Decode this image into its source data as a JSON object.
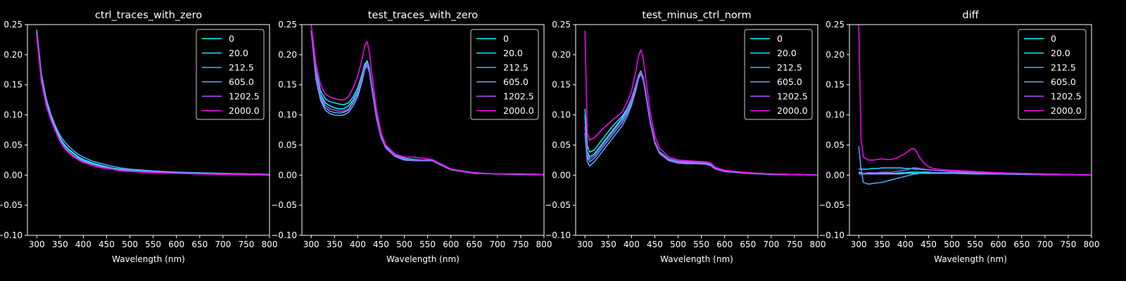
{
  "series_colors": [
    "#00ffff",
    "#1ce3ff",
    "#55aaff",
    "#71a3ff",
    "#aa55ff",
    "#ff00ff"
  ],
  "legend_labels": [
    "0",
    "20.0",
    "212.5",
    "605.0",
    "1202.5",
    "2000.0"
  ],
  "chart_data": [
    {
      "type": "line",
      "title": "ctrl_traces_with_zero",
      "xlabel": "Wavelength (nm)",
      "ylabel": "",
      "xlim": [
        280,
        800
      ],
      "ylim": [
        -0.1,
        0.25
      ],
      "xticks": [
        "300",
        "350",
        "400",
        "450",
        "500",
        "550",
        "600",
        "650",
        "700",
        "750",
        "800"
      ],
      "yticks": [
        "−0.10",
        "−0.05",
        "0.00",
        "0.05",
        "0.10",
        "0.15",
        "0.20",
        "0.25"
      ],
      "legend_position": "top-right",
      "grid": false,
      "x": [
        300,
        310,
        320,
        330,
        340,
        350,
        360,
        370,
        380,
        390,
        400,
        420,
        440,
        460,
        480,
        500,
        550,
        600,
        650,
        700,
        750,
        800
      ],
      "series": [
        {
          "name": "0",
          "values": [
            0.24,
            0.165,
            0.125,
            0.1,
            0.08,
            0.062,
            0.05,
            0.042,
            0.036,
            0.03,
            0.026,
            0.02,
            0.016,
            0.012,
            0.01,
            0.008,
            0.006,
            0.004,
            0.003,
            0.002,
            0.002,
            0.001
          ]
        },
        {
          "name": "20.0",
          "values": [
            0.238,
            0.163,
            0.124,
            0.099,
            0.079,
            0.061,
            0.049,
            0.041,
            0.035,
            0.029,
            0.025,
            0.019,
            0.015,
            0.012,
            0.009,
            0.008,
            0.006,
            0.004,
            0.003,
            0.002,
            0.002,
            0.001
          ]
        },
        {
          "name": "212.5",
          "values": [
            0.242,
            0.168,
            0.128,
            0.102,
            0.082,
            0.066,
            0.055,
            0.047,
            0.04,
            0.034,
            0.03,
            0.023,
            0.019,
            0.015,
            0.012,
            0.01,
            0.007,
            0.005,
            0.004,
            0.003,
            0.002,
            0.001
          ]
        },
        {
          "name": "605.0",
          "values": [
            0.236,
            0.16,
            0.12,
            0.095,
            0.075,
            0.058,
            0.046,
            0.038,
            0.032,
            0.027,
            0.023,
            0.018,
            0.014,
            0.011,
            0.009,
            0.007,
            0.005,
            0.004,
            0.003,
            0.002,
            0.001,
            0.001
          ]
        },
        {
          "name": "1202.5",
          "values": [
            0.235,
            0.158,
            0.118,
            0.093,
            0.074,
            0.057,
            0.045,
            0.037,
            0.031,
            0.026,
            0.022,
            0.017,
            0.013,
            0.01,
            0.008,
            0.007,
            0.005,
            0.003,
            0.002,
            0.002,
            0.001,
            0.0
          ]
        },
        {
          "name": "2000.0",
          "values": [
            0.232,
            0.155,
            0.116,
            0.092,
            0.073,
            0.056,
            0.044,
            0.036,
            0.03,
            0.025,
            0.021,
            0.016,
            0.012,
            0.01,
            0.007,
            0.006,
            0.004,
            0.003,
            0.002,
            0.001,
            0.001,
            0.0
          ]
        }
      ]
    },
    {
      "type": "line",
      "title": "test_traces_with_zero",
      "xlabel": "Wavelength (nm)",
      "ylabel": "",
      "xlim": [
        280,
        800
      ],
      "ylim": [
        -0.1,
        0.25
      ],
      "xticks": [
        "300",
        "350",
        "400",
        "450",
        "500",
        "550",
        "600",
        "650",
        "700",
        "750",
        "800"
      ],
      "yticks": [
        "−0.10",
        "−0.05",
        "0.00",
        "0.05",
        "0.10",
        "0.15",
        "0.20",
        "0.25"
      ],
      "legend_position": "top-right",
      "grid": false,
      "x": [
        300,
        310,
        320,
        330,
        340,
        350,
        360,
        370,
        380,
        390,
        400,
        410,
        415,
        420,
        425,
        430,
        440,
        450,
        460,
        480,
        500,
        520,
        540,
        560,
        580,
        600,
        650,
        700,
        750,
        800
      ],
      "series": [
        {
          "name": "0",
          "values": [
            0.24,
            0.17,
            0.135,
            0.12,
            0.115,
            0.112,
            0.11,
            0.11,
            0.115,
            0.125,
            0.14,
            0.165,
            0.182,
            0.19,
            0.178,
            0.15,
            0.1,
            0.065,
            0.048,
            0.035,
            0.028,
            0.026,
            0.025,
            0.025,
            0.018,
            0.01,
            0.004,
            0.002,
            0.002,
            0.001
          ]
        },
        {
          "name": "20.0",
          "values": [
            0.24,
            0.175,
            0.14,
            0.127,
            0.122,
            0.12,
            0.118,
            0.117,
            0.12,
            0.13,
            0.145,
            0.17,
            0.185,
            0.188,
            0.175,
            0.148,
            0.098,
            0.064,
            0.047,
            0.034,
            0.027,
            0.026,
            0.025,
            0.025,
            0.018,
            0.01,
            0.004,
            0.002,
            0.002,
            0.001
          ]
        },
        {
          "name": "212.5",
          "values": [
            0.24,
            0.165,
            0.128,
            0.112,
            0.106,
            0.104,
            0.103,
            0.104,
            0.108,
            0.12,
            0.135,
            0.162,
            0.178,
            0.185,
            0.173,
            0.146,
            0.097,
            0.063,
            0.046,
            0.032,
            0.026,
            0.025,
            0.025,
            0.024,
            0.017,
            0.009,
            0.004,
            0.002,
            0.001,
            0.001
          ]
        },
        {
          "name": "605.0",
          "values": [
            0.24,
            0.16,
            0.124,
            0.108,
            0.102,
            0.1,
            0.099,
            0.1,
            0.104,
            0.115,
            0.13,
            0.158,
            0.175,
            0.182,
            0.171,
            0.144,
            0.095,
            0.062,
            0.045,
            0.031,
            0.025,
            0.024,
            0.024,
            0.024,
            0.016,
            0.009,
            0.003,
            0.002,
            0.001,
            0.001
          ]
        },
        {
          "name": "1202.5",
          "values": [
            0.24,
            0.168,
            0.132,
            0.116,
            0.11,
            0.108,
            0.106,
            0.106,
            0.11,
            0.122,
            0.138,
            0.164,
            0.18,
            0.186,
            0.174,
            0.147,
            0.098,
            0.064,
            0.046,
            0.033,
            0.027,
            0.025,
            0.025,
            0.025,
            0.017,
            0.01,
            0.004,
            0.002,
            0.002,
            0.001
          ]
        },
        {
          "name": "2000.0",
          "values": [
            0.25,
            0.185,
            0.15,
            0.135,
            0.13,
            0.127,
            0.125,
            0.125,
            0.13,
            0.145,
            0.165,
            0.195,
            0.215,
            0.222,
            0.205,
            0.17,
            0.11,
            0.07,
            0.05,
            0.035,
            0.03,
            0.03,
            0.028,
            0.026,
            0.018,
            0.01,
            0.004,
            0.002,
            0.002,
            0.001
          ]
        }
      ]
    },
    {
      "type": "line",
      "title": "test_minus_ctrl_norm",
      "xlabel": "Wavelength (nm)",
      "ylabel": "",
      "xlim": [
        280,
        800
      ],
      "ylim": [
        -0.1,
        0.25
      ],
      "xticks": [
        "300",
        "350",
        "400",
        "450",
        "500",
        "550",
        "600",
        "650",
        "700",
        "750",
        "800"
      ],
      "yticks": [
        "−0.10",
        "−0.05",
        "0.00",
        "0.05",
        "0.10",
        "0.15",
        "0.20",
        "0.25"
      ],
      "legend_position": "top-right",
      "grid": false,
      "x": [
        300,
        305,
        310,
        320,
        330,
        340,
        350,
        360,
        370,
        380,
        390,
        400,
        410,
        415,
        420,
        425,
        430,
        440,
        450,
        460,
        480,
        500,
        520,
        540,
        560,
        570,
        580,
        600,
        650,
        700,
        750,
        800
      ],
      "series": [
        {
          "name": "0",
          "values": [
            0.1,
            0.04,
            0.03,
            0.035,
            0.045,
            0.055,
            0.065,
            0.075,
            0.085,
            0.095,
            0.108,
            0.125,
            0.15,
            0.165,
            0.172,
            0.162,
            0.14,
            0.09,
            0.055,
            0.038,
            0.026,
            0.022,
            0.021,
            0.021,
            0.02,
            0.018,
            0.012,
            0.007,
            0.004,
            0.002,
            0.001,
            0.0
          ]
        },
        {
          "name": "20.0",
          "values": [
            0.11,
            0.05,
            0.038,
            0.042,
            0.052,
            0.062,
            0.072,
            0.082,
            0.09,
            0.098,
            0.11,
            0.127,
            0.152,
            0.166,
            0.173,
            0.163,
            0.141,
            0.091,
            0.056,
            0.039,
            0.027,
            0.023,
            0.022,
            0.022,
            0.021,
            0.019,
            0.012,
            0.007,
            0.004,
            0.002,
            0.001,
            0.0
          ]
        },
        {
          "name": "212.5",
          "values": [
            0.08,
            0.03,
            0.022,
            0.028,
            0.038,
            0.048,
            0.058,
            0.068,
            0.078,
            0.088,
            0.102,
            0.12,
            0.146,
            0.162,
            0.17,
            0.16,
            0.138,
            0.088,
            0.054,
            0.037,
            0.025,
            0.021,
            0.02,
            0.02,
            0.019,
            0.017,
            0.011,
            0.006,
            0.003,
            0.002,
            0.001,
            0.0
          ]
        },
        {
          "name": "605.0",
          "values": [
            0.07,
            0.022,
            0.015,
            0.022,
            0.032,
            0.042,
            0.052,
            0.062,
            0.072,
            0.082,
            0.097,
            0.116,
            0.143,
            0.16,
            0.168,
            0.158,
            0.136,
            0.087,
            0.053,
            0.036,
            0.024,
            0.02,
            0.019,
            0.019,
            0.018,
            0.016,
            0.01,
            0.006,
            0.003,
            0.001,
            0.001,
            0.0
          ]
        },
        {
          "name": "1202.5",
          "values": [
            0.09,
            0.035,
            0.026,
            0.032,
            0.042,
            0.052,
            0.062,
            0.072,
            0.082,
            0.092,
            0.106,
            0.124,
            0.149,
            0.164,
            0.171,
            0.161,
            0.139,
            0.089,
            0.055,
            0.038,
            0.026,
            0.022,
            0.021,
            0.021,
            0.02,
            0.018,
            0.011,
            0.007,
            0.004,
            0.002,
            0.001,
            0.0
          ]
        },
        {
          "name": "2000.0",
          "values": [
            0.24,
            0.07,
            0.058,
            0.062,
            0.07,
            0.078,
            0.085,
            0.092,
            0.098,
            0.105,
            0.12,
            0.14,
            0.175,
            0.198,
            0.208,
            0.195,
            0.165,
            0.105,
            0.065,
            0.045,
            0.03,
            0.025,
            0.024,
            0.023,
            0.022,
            0.02,
            0.013,
            0.008,
            0.004,
            0.002,
            0.001,
            0.0
          ]
        }
      ]
    },
    {
      "type": "line",
      "title": "diff",
      "xlabel": "Wavelength (nm)",
      "ylabel": "",
      "xlim": [
        280,
        800
      ],
      "ylim": [
        -0.1,
        0.25
      ],
      "xticks": [
        "300",
        "350",
        "400",
        "450",
        "500",
        "550",
        "600",
        "650",
        "700",
        "750",
        "800"
      ],
      "yticks": [
        "−0.10",
        "−0.05",
        "0.00",
        "0.05",
        "0.10",
        "0.15",
        "0.20",
        "0.25"
      ],
      "legend_position": "top-right",
      "grid": false,
      "x": [
        300,
        305,
        310,
        320,
        330,
        340,
        350,
        360,
        370,
        380,
        390,
        400,
        410,
        415,
        420,
        425,
        430,
        440,
        450,
        460,
        480,
        500,
        550,
        600,
        650,
        700,
        750,
        800
      ],
      "series": [
        {
          "name": "0",
          "values": [
            0.005,
            0.004,
            0.003,
            0.003,
            0.003,
            0.003,
            0.003,
            0.003,
            0.003,
            0.003,
            0.004,
            0.004,
            0.005,
            0.005,
            0.005,
            0.005,
            0.005,
            0.005,
            0.005,
            0.004,
            0.004,
            0.003,
            0.003,
            0.002,
            0.002,
            0.001,
            0.001,
            0.0
          ]
        },
        {
          "name": "20.0",
          "values": [
            0.01,
            0.01,
            0.01,
            0.01,
            0.011,
            0.011,
            0.012,
            0.012,
            0.012,
            0.012,
            0.012,
            0.011,
            0.011,
            0.011,
            0.01,
            0.01,
            0.01,
            0.009,
            0.009,
            0.008,
            0.007,
            0.006,
            0.005,
            0.004,
            0.003,
            0.002,
            0.001,
            0.0
          ]
        },
        {
          "name": "212.5",
          "values": [
            0.048,
            0.01,
            -0.012,
            -0.015,
            -0.014,
            -0.013,
            -0.012,
            -0.01,
            -0.008,
            -0.006,
            -0.004,
            -0.002,
            0.0,
            0.001,
            0.002,
            0.002,
            0.003,
            0.004,
            0.004,
            0.004,
            0.004,
            0.004,
            0.003,
            0.002,
            0.002,
            0.001,
            0.001,
            0.0
          ]
        },
        {
          "name": "605.0",
          "values": [
            0.002,
            0.002,
            0.002,
            0.002,
            0.002,
            0.002,
            0.002,
            0.002,
            0.002,
            0.002,
            0.002,
            0.003,
            0.003,
            0.003,
            0.003,
            0.003,
            0.003,
            0.003,
            0.003,
            0.003,
            0.003,
            0.003,
            0.002,
            0.002,
            0.001,
            0.001,
            0.001,
            0.0
          ]
        },
        {
          "name": "1202.5",
          "values": [
            0.003,
            0.003,
            0.003,
            0.004,
            0.004,
            0.004,
            0.005,
            0.005,
            0.005,
            0.006,
            0.007,
            0.008,
            0.01,
            0.012,
            0.012,
            0.012,
            0.011,
            0.01,
            0.009,
            0.008,
            0.007,
            0.006,
            0.004,
            0.003,
            0.002,
            0.001,
            0.001,
            0.0
          ]
        },
        {
          "name": "2000.0",
          "values": [
            0.25,
            0.06,
            0.03,
            0.025,
            0.025,
            0.026,
            0.027,
            0.026,
            0.026,
            0.028,
            0.032,
            0.036,
            0.042,
            0.044,
            0.043,
            0.038,
            0.03,
            0.02,
            0.014,
            0.011,
            0.009,
            0.008,
            0.006,
            0.004,
            0.003,
            0.002,
            0.001,
            0.0
          ]
        }
      ]
    }
  ]
}
